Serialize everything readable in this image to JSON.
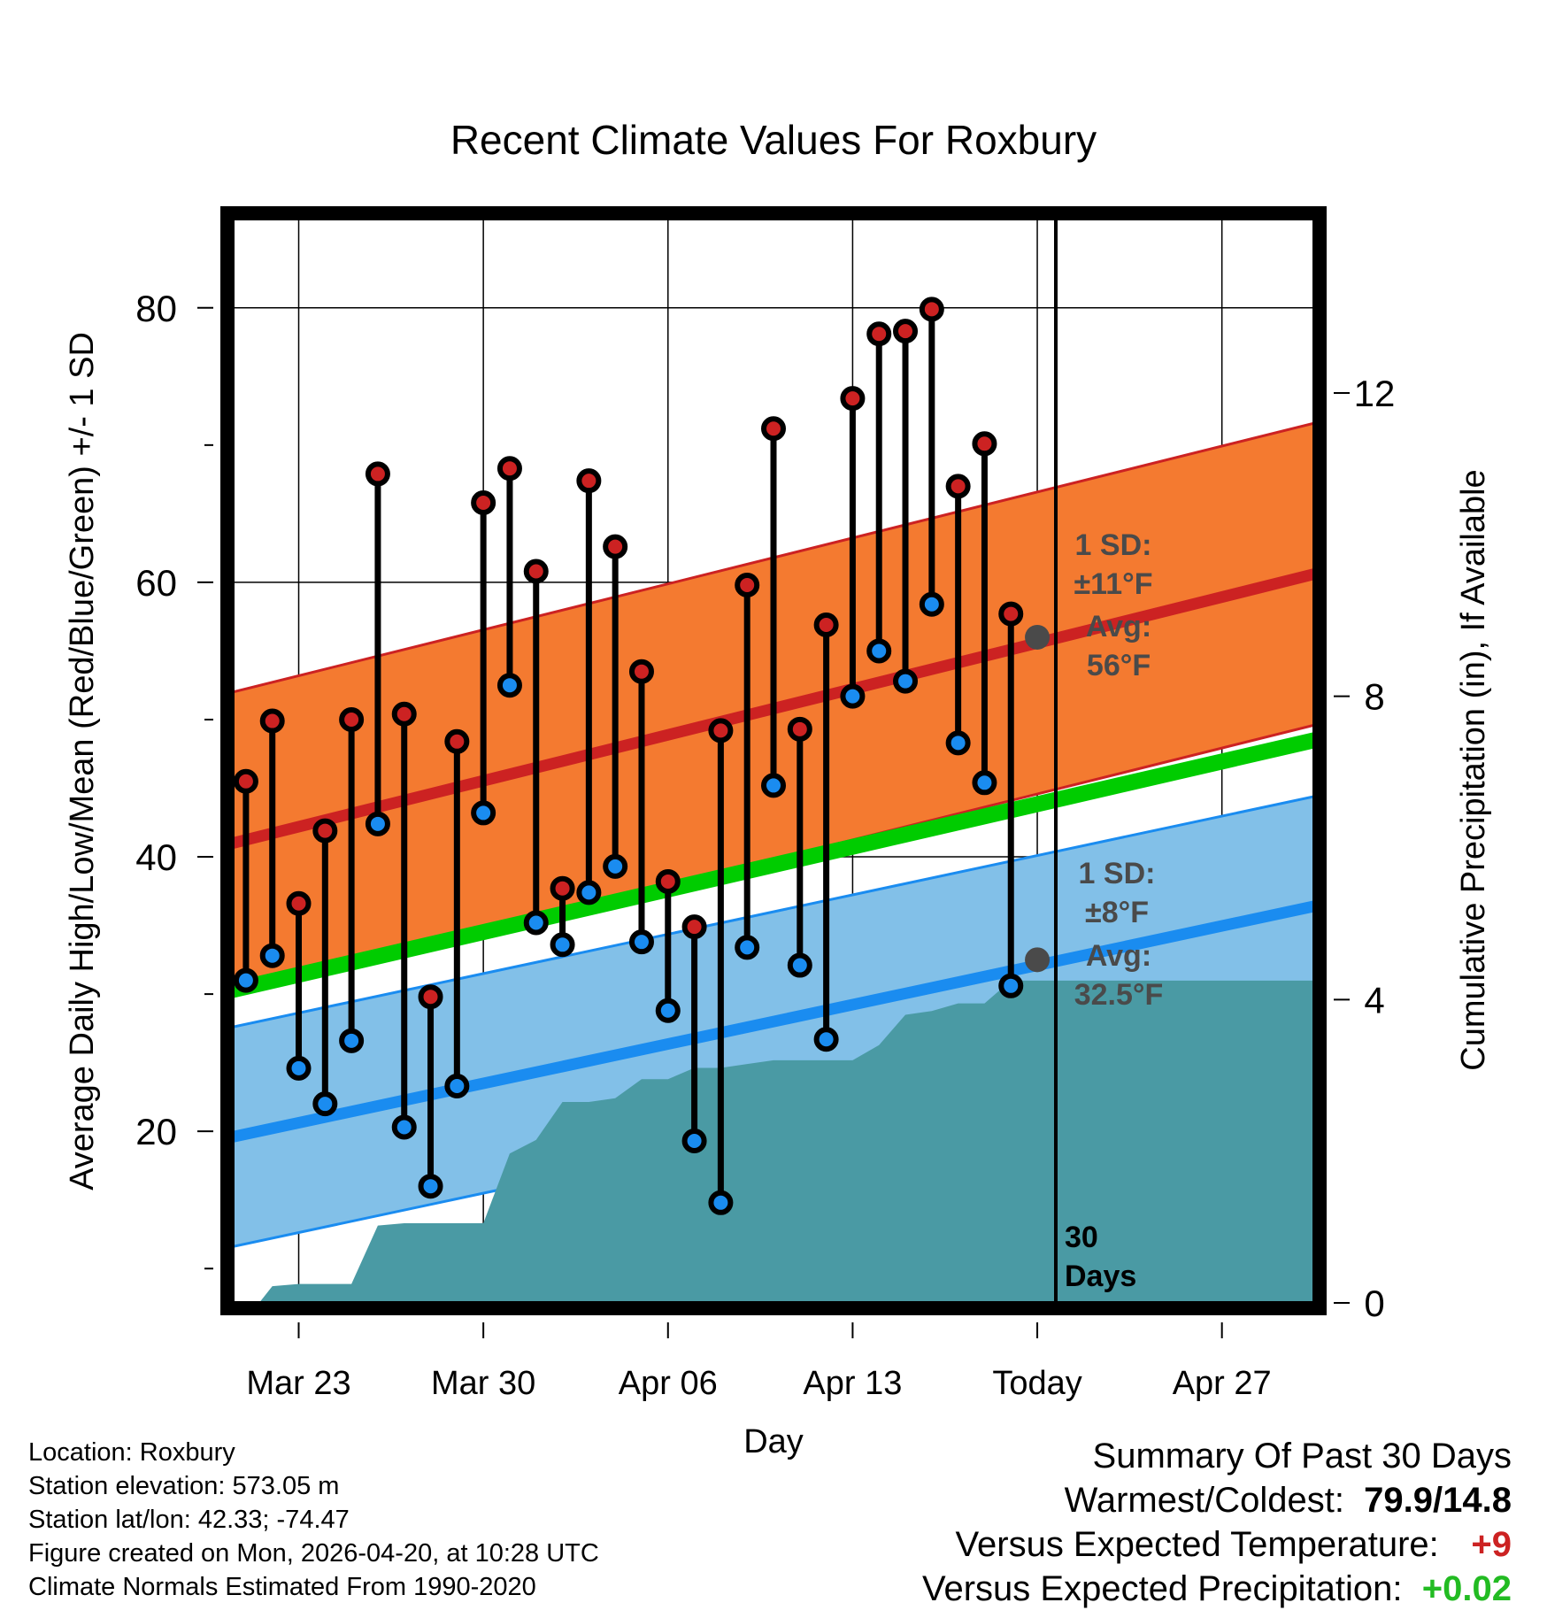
{
  "chart_data": {
    "type": "line",
    "title": "Recent Climate Values For Roxbury",
    "xlabel": "Day",
    "ylabel": "Average Daily High/Low/Mean (Red/Blue/Green) +/- 1 SD",
    "y2label": "Cumulative Precipitation (in), If Available",
    "ylim": [
      7.5,
      86.5
    ],
    "y2lim": [
      0,
      14.3
    ],
    "xlim": [
      -2.5,
      38.5
    ],
    "yticks": [
      20,
      40,
      60,
      80
    ],
    "y2ticks": [
      0,
      4,
      8,
      12
    ],
    "xticks": [
      {
        "day": 0,
        "label": "Mar 23"
      },
      {
        "day": 7,
        "label": "Mar 30"
      },
      {
        "day": 14,
        "label": "Apr 06"
      },
      {
        "day": 21,
        "label": "Apr 13"
      },
      {
        "day": 28,
        "label": "Today"
      },
      {
        "day": 35,
        "label": "Apr 27"
      }
    ],
    "today_day": 28,
    "period_label": "30\nDays",
    "days": [
      -2,
      -1,
      0,
      1,
      2,
      3,
      4,
      5,
      6,
      7,
      8,
      9,
      10,
      11,
      12,
      13,
      14,
      15,
      16,
      17,
      18,
      19,
      20,
      21,
      22,
      23,
      24,
      25,
      26,
      27
    ],
    "highs": [
      45.5,
      49.9,
      36.6,
      41.9,
      50.0,
      67.9,
      50.4,
      29.8,
      48.4,
      65.8,
      68.3,
      60.8,
      37.7,
      67.4,
      62.6,
      53.5,
      38.2,
      34.9,
      49.2,
      59.8,
      71.2,
      49.3,
      56.9,
      73.4,
      78.1,
      78.3,
      79.9,
      67.0,
      70.1,
      57.7
    ],
    "lows": [
      31.0,
      32.8,
      24.6,
      22.0,
      26.6,
      42.4,
      20.3,
      16.0,
      23.3,
      43.2,
      52.5,
      35.2,
      33.6,
      37.4,
      39.3,
      33.8,
      28.8,
      19.3,
      14.8,
      33.4,
      45.2,
      32.1,
      26.7,
      51.7,
      55.0,
      52.8,
      58.4,
      48.3,
      45.4,
      30.6
    ],
    "normal_high": {
      "start": 41.0,
      "end": 60.6,
      "sd": 11
    },
    "normal_low": {
      "start": 19.6,
      "end": 36.4,
      "sd": 8
    },
    "normal_mean": {
      "start": 30.3,
      "end": 48.5
    },
    "precip_cumulative": [
      [
        -2.5,
        0
      ],
      [
        -1.5,
        0
      ],
      [
        -1,
        0.22
      ],
      [
        0,
        0.25
      ],
      [
        1,
        0.25
      ],
      [
        2,
        0.25
      ],
      [
        3,
        1.02
      ],
      [
        4,
        1.05
      ],
      [
        5,
        1.05
      ],
      [
        6,
        1.05
      ],
      [
        7,
        1.05
      ],
      [
        8,
        1.97
      ],
      [
        9,
        2.15
      ],
      [
        10,
        2.65
      ],
      [
        11,
        2.65
      ],
      [
        12,
        2.7
      ],
      [
        13,
        2.95
      ],
      [
        14,
        2.95
      ],
      [
        15,
        3.1
      ],
      [
        16,
        3.1
      ],
      [
        17,
        3.15
      ],
      [
        18,
        3.2
      ],
      [
        19,
        3.2
      ],
      [
        20,
        3.2
      ],
      [
        21,
        3.2
      ],
      [
        22,
        3.4
      ],
      [
        23,
        3.8
      ],
      [
        24,
        3.85
      ],
      [
        25,
        3.95
      ],
      [
        26,
        3.95
      ],
      [
        27,
        4.25
      ],
      [
        28,
        4.25
      ],
      [
        38.5,
        4.25
      ]
    ],
    "annotations": {
      "high_sd": "1 SD:\n±11°F",
      "high_avg": "Avg:\n56°F",
      "low_sd": "1 SD:\n±8°F",
      "low_avg": "Avg:\n32.5°F",
      "high_today_avg": 56,
      "low_today_avg": 32.5
    }
  },
  "info": {
    "location": "Location: Roxbury",
    "elevation": "Station elevation: 573.05 m",
    "latlon": "Station lat/lon: 42.33; -74.47",
    "created": "Figure created on Mon, 2026-04-20, at 10:28 UTC",
    "normals": "Climate Normals Estimated From 1990-2020"
  },
  "summary": {
    "title": "Summary Of Past 30 Days",
    "warm_cold_label": "Warmest/Coldest:",
    "warm_cold_value": "79.9/14.8",
    "temp_label": "Versus Expected Temperature:",
    "temp_value": "+9",
    "precip_label": "Versus Expected Precipitation:",
    "precip_value": "+0.02"
  },
  "colors": {
    "high": "#cc2222",
    "high_band": "#f47a30",
    "low": "#1a8cf0",
    "low_band": "#82c0e8",
    "mean": "#00cc00",
    "precip": "#4a9aa4",
    "annotation": "#4a4a4a"
  }
}
